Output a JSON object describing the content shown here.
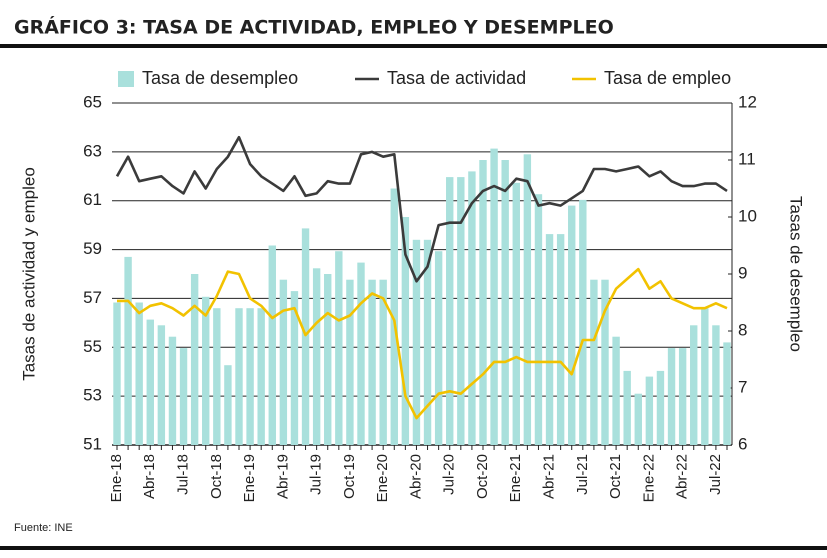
{
  "chart_data": {
    "type": "bar-line",
    "title": "GRÁFICO 3: TASA DE ACTIVIDAD, EMPLEO Y DESEMPLEO",
    "y_label": "Tasas de actividad y empleo",
    "y2_label": "Tasas de desempleo",
    "source": "Fuente: INE",
    "categories": [
      "Ene-18",
      null,
      null,
      "Abr-18",
      null,
      null,
      "Jul-18",
      null,
      null,
      "Oct-18",
      null,
      null,
      "Ene-19",
      null,
      null,
      "Abr-19",
      null,
      null,
      "Jul-19",
      null,
      null,
      "Oct-19",
      null,
      null,
      "Ene-20",
      null,
      null,
      "Abr-20",
      null,
      null,
      "Jul-20",
      null,
      null,
      "Oct-20",
      null,
      null,
      "Ene-21",
      null,
      null,
      "Abr-21",
      null,
      null,
      "Jul-21",
      null,
      null,
      "Oct-21",
      null,
      null,
      "Ene-22",
      null,
      null,
      "Abr-22",
      null,
      null,
      "Jul-22",
      null
    ],
    "series": [
      {
        "name": "Tasa de desempleo",
        "type": "bar",
        "axis": "y2",
        "color": "#a9e0dc",
        "values": [
          8.5,
          9.3,
          8.5,
          8.2,
          8.1,
          7.9,
          7.7,
          9.0,
          8.6,
          8.4,
          7.4,
          8.4,
          8.4,
          8.4,
          9.5,
          8.9,
          8.7,
          9.8,
          9.1,
          9.0,
          9.4,
          8.9,
          9.2,
          8.9,
          8.9,
          10.5,
          10.0,
          9.6,
          9.6,
          9.4,
          10.7,
          10.7,
          10.8,
          11.0,
          11.2,
          11.0,
          10.6,
          11.1,
          10.4,
          9.7,
          9.7,
          10.2,
          10.3,
          8.9,
          8.9,
          7.9,
          7.3,
          6.9,
          7.2,
          7.3,
          7.7,
          7.7,
          8.1,
          8.4,
          8.1,
          7.8
        ]
      },
      {
        "name": "Tasa de actividad",
        "type": "line",
        "color": "#3b3b3b",
        "values": [
          62.0,
          62.8,
          61.8,
          61.9,
          62.0,
          61.6,
          61.3,
          62.2,
          61.5,
          62.3,
          62.8,
          63.6,
          62.5,
          62.0,
          61.7,
          61.4,
          62.0,
          61.2,
          61.3,
          61.8,
          61.7,
          61.7,
          62.9,
          63.0,
          62.8,
          62.9,
          58.8,
          57.7,
          58.3,
          60.0,
          60.1,
          60.1,
          60.9,
          61.4,
          61.6,
          61.4,
          61.9,
          61.8,
          60.8,
          60.9,
          60.8,
          61.1,
          61.4,
          62.3,
          62.3,
          62.2,
          62.3,
          62.4,
          62.0,
          62.2,
          61.8,
          61.6,
          61.6,
          61.7,
          61.7,
          61.4
        ]
      },
      {
        "name": "Tasa de empleo",
        "type": "line",
        "color": "#f2c200",
        "values": [
          56.9,
          56.9,
          56.4,
          56.7,
          56.8,
          56.6,
          56.3,
          56.7,
          56.3,
          57.1,
          58.1,
          58.0,
          57.0,
          56.7,
          56.2,
          56.5,
          56.6,
          55.5,
          56.0,
          56.4,
          56.1,
          56.3,
          56.8,
          57.2,
          57.0,
          56.1,
          53.0,
          52.1,
          52.6,
          53.1,
          53.2,
          53.1,
          53.5,
          53.9,
          54.4,
          54.4,
          54.6,
          54.4,
          54.4,
          54.4,
          54.4,
          53.9,
          55.3,
          55.3,
          56.5,
          57.4,
          57.8,
          58.2,
          57.4,
          57.7,
          57.0,
          56.8,
          56.6,
          56.6,
          56.8,
          56.6
        ]
      }
    ],
    "ylim": [
      51,
      65
    ],
    "yticks": [
      51,
      53,
      55,
      57,
      59,
      61,
      63,
      65
    ],
    "y2lim": [
      6,
      12
    ],
    "y2ticks": [
      6,
      7,
      8,
      9,
      10,
      11,
      12
    ],
    "grid": true,
    "legend": "top"
  }
}
